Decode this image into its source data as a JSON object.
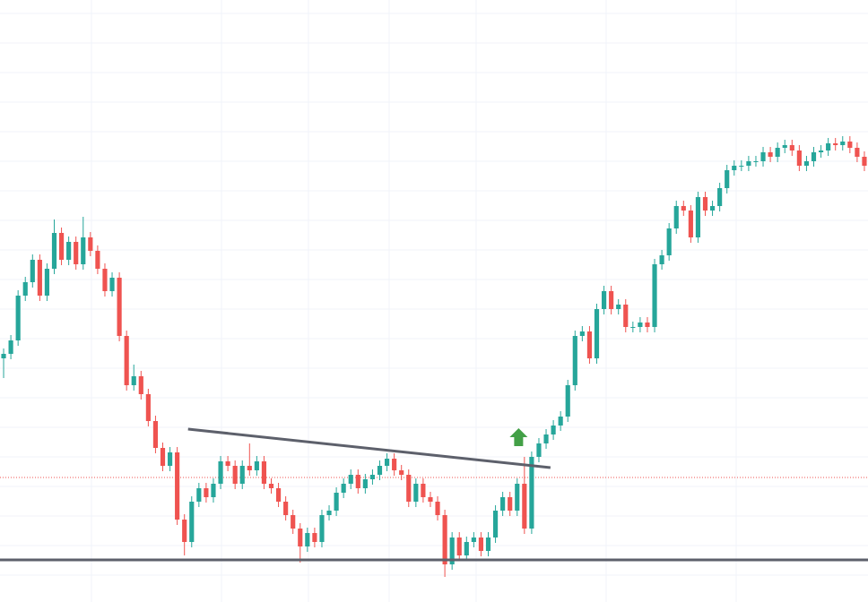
{
  "chart_data": {
    "type": "candlestick",
    "xlim": [
      -0.5,
      119.5
    ],
    "ylim": [
      0,
      672
    ],
    "up_color": "#26a69a",
    "down_color": "#ef5350",
    "open": [
      272,
      277,
      292,
      342,
      357,
      382,
      342,
      372,
      412,
      382,
      402,
      377,
      407,
      392,
      372,
      347,
      362,
      297,
      242,
      252,
      232,
      202,
      172,
      152,
      167,
      92,
      67,
      112,
      127,
      117,
      132,
      157,
      152,
      132,
      152,
      147,
      157,
      132,
      127,
      112,
      97,
      82,
      62,
      77,
      67,
      97,
      102,
      122,
      132,
      142,
      127,
      137,
      142,
      152,
      160,
      147,
      142,
      112,
      132,
      117,
      112,
      97,
      42,
      72,
      52,
      67,
      72,
      57,
      72,
      102,
      117,
      102,
      132,
      82,
      162,
      177,
      187,
      197,
      207,
      242,
      297,
      302,
      272,
      327,
      347,
      327,
      332,
      307,
      307,
      312,
      307,
      377,
      387,
      417,
      442,
      437,
      407,
      452,
      437,
      442,
      462,
      482,
      487,
      487,
      492,
      492,
      502,
      497,
      507,
      510,
      504,
      487,
      492,
      502,
      504,
      512,
      510,
      514,
      507,
      497
    ],
    "high": [
      283,
      298,
      348,
      363,
      388,
      388,
      378,
      427,
      418,
      408,
      408,
      430,
      413,
      398,
      378,
      368,
      368,
      303,
      265,
      258,
      238,
      208,
      178,
      173,
      173,
      98,
      118,
      133,
      133,
      138,
      163,
      163,
      158,
      158,
      177,
      163,
      163,
      138,
      133,
      118,
      103,
      88,
      83,
      83,
      103,
      108,
      128,
      138,
      148,
      148,
      143,
      148,
      158,
      166,
      166,
      153,
      148,
      138,
      138,
      123,
      118,
      103,
      78,
      78,
      73,
      78,
      78,
      78,
      108,
      123,
      123,
      138,
      162,
      168,
      183,
      193,
      203,
      213,
      248,
      303,
      308,
      308,
      333,
      353,
      353,
      338,
      338,
      313,
      318,
      318,
      383,
      393,
      423,
      448,
      448,
      443,
      458,
      458,
      448,
      468,
      488,
      493,
      493,
      498,
      498,
      508,
      508,
      513,
      516,
      516,
      510,
      498,
      508,
      510,
      518,
      518,
      520,
      520,
      513,
      503
    ],
    "low": [
      250,
      271,
      286,
      336,
      351,
      336,
      336,
      366,
      376,
      376,
      371,
      371,
      386,
      366,
      341,
      341,
      291,
      236,
      236,
      226,
      196,
      166,
      146,
      146,
      86,
      52,
      61,
      106,
      111,
      111,
      126,
      146,
      126,
      126,
      141,
      141,
      126,
      121,
      106,
      91,
      76,
      44,
      56,
      61,
      61,
      91,
      96,
      116,
      126,
      121,
      121,
      131,
      136,
      146,
      141,
      136,
      106,
      106,
      111,
      106,
      91,
      28,
      36,
      46,
      46,
      61,
      51,
      51,
      66,
      96,
      96,
      96,
      76,
      76,
      156,
      171,
      181,
      191,
      201,
      236,
      291,
      266,
      266,
      321,
      321,
      321,
      301,
      301,
      301,
      301,
      301,
      371,
      381,
      411,
      431,
      401,
      401,
      431,
      431,
      436,
      456,
      476,
      481,
      481,
      486,
      486,
      491,
      491,
      501,
      498,
      481,
      481,
      486,
      496,
      498,
      504,
      504,
      501,
      491,
      481
    ],
    "close": [
      277,
      292,
      342,
      357,
      382,
      342,
      372,
      412,
      382,
      402,
      377,
      407,
      392,
      372,
      347,
      362,
      297,
      242,
      252,
      232,
      202,
      172,
      152,
      167,
      92,
      67,
      112,
      127,
      117,
      132,
      157,
      152,
      132,
      152,
      147,
      157,
      132,
      127,
      112,
      97,
      82,
      62,
      77,
      67,
      97,
      102,
      122,
      132,
      142,
      127,
      137,
      142,
      152,
      160,
      147,
      142,
      112,
      132,
      117,
      112,
      97,
      42,
      72,
      52,
      67,
      72,
      57,
      72,
      102,
      117,
      102,
      132,
      82,
      162,
      177,
      187,
      197,
      207,
      242,
      297,
      302,
      272,
      327,
      347,
      327,
      332,
      307,
      307,
      312,
      307,
      377,
      387,
      417,
      442,
      437,
      407,
      452,
      437,
      442,
      462,
      482,
      487,
      487,
      492,
      492,
      502,
      497,
      507,
      510,
      504,
      487,
      492,
      502,
      504,
      512,
      510,
      514,
      507,
      497,
      487
    ],
    "trendlines": [
      {
        "x": [
          25.5,
          75.6
        ],
        "y": [
          193,
          150
        ],
        "color": "#5d606b"
      },
      {
        "x": [
          -0.5,
          119.5
        ],
        "y": [
          47,
          47
        ],
        "color": "#5d606b"
      }
    ],
    "price_line": {
      "value": 139,
      "color": "#ef5350"
    },
    "arrow": {
      "x": 71.2,
      "y": 184,
      "color": "#43a047"
    }
  }
}
